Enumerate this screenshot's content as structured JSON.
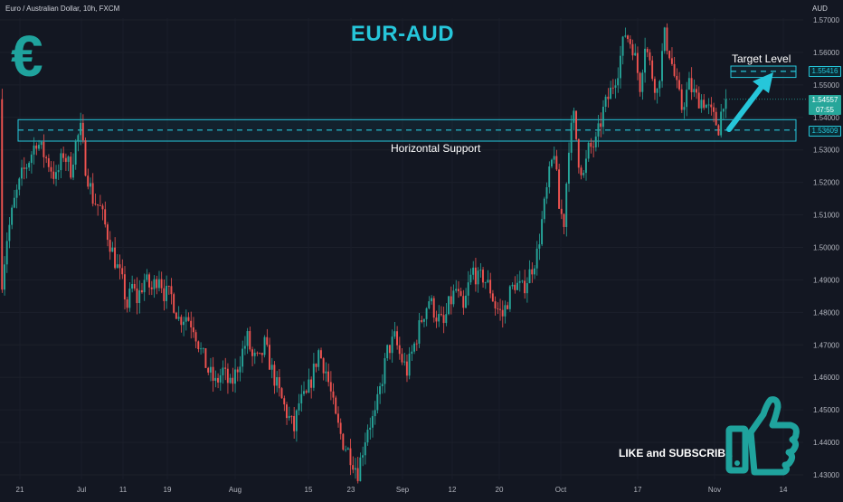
{
  "header": {
    "symbol_title": "Euro / Australian Dollar, 10h, FXCM",
    "headline": "EUR-AUD",
    "axis_unit": "AUD"
  },
  "annotations": {
    "support_label": "Horizontal Support",
    "target_label": "Target Level",
    "cta_label": "LIKE and SUBSCRIBE",
    "logo_glyph": "€"
  },
  "price_tags": {
    "target": "1.55416",
    "last_price": "1.54557",
    "countdown": "07:55",
    "support": "1.53609"
  },
  "colors": {
    "background": "#131722",
    "bull": "#26a69a",
    "bear": "#ef5350",
    "accent": "#26c6da",
    "logo": "#1fa39d"
  },
  "icons": [
    "euro-logo-icon",
    "thumbs-up-icon",
    "target-arrow-icon"
  ],
  "chart_data": {
    "type": "candlestick",
    "title": "EUR-AUD",
    "ylabel": "AUD",
    "ylim": [
      1.428,
      1.572
    ],
    "y_ticks": [
      "1.57000",
      "1.56000",
      "1.55000",
      "1.54000",
      "1.53000",
      "1.52000",
      "1.51000",
      "1.50000",
      "1.49000",
      "1.48000",
      "1.47000",
      "1.46000",
      "1.45000",
      "1.44000",
      "1.43000"
    ],
    "x_ticks": [
      "21",
      "Jul",
      "11",
      "19",
      "Aug",
      "15",
      "23",
      "Sep",
      "12",
      "20",
      "Oct",
      "17",
      "Nov",
      "14"
    ],
    "support_zone": {
      "level": 1.53609,
      "high": 1.5393,
      "low": 1.5327
    },
    "target_zone": {
      "level": 1.55416,
      "high": 1.5558,
      "low": 1.5523
    },
    "last_price": 1.54557,
    "path": [
      [
        1,
        1.49
      ],
      [
        3,
        1.503
      ],
      [
        6,
        1.514
      ],
      [
        9,
        1.522
      ],
      [
        12,
        1.527
      ],
      [
        15,
        1.533
      ],
      [
        17,
        1.53
      ],
      [
        20,
        1.526
      ],
      [
        23,
        1.521
      ],
      [
        26,
        1.529
      ],
      [
        29,
        1.524
      ],
      [
        31,
        1.532
      ],
      [
        33,
        1.536
      ],
      [
        35,
        1.525
      ],
      [
        38,
        1.515
      ],
      [
        41,
        1.512
      ],
      [
        44,
        1.504
      ],
      [
        47,
        1.496
      ],
      [
        50,
        1.489
      ],
      [
        52,
        1.482
      ],
      [
        54,
        1.488
      ],
      [
        56,
        1.484
      ],
      [
        59,
        1.49
      ],
      [
        62,
        1.487
      ],
      [
        65,
        1.492
      ],
      [
        67,
        1.486
      ],
      [
        70,
        1.485
      ],
      [
        73,
        1.478
      ],
      [
        76,
        1.479
      ],
      [
        79,
        1.476
      ],
      [
        82,
        1.468
      ],
      [
        85,
        1.462
      ],
      [
        88,
        1.458
      ],
      [
        91,
        1.462
      ],
      [
        94,
        1.457
      ],
      [
        96,
        1.461
      ],
      [
        99,
        1.468
      ],
      [
        101,
        1.472
      ],
      [
        103,
        1.466
      ],
      [
        106,
        1.465
      ],
      [
        108,
        1.47
      ],
      [
        111,
        1.462
      ],
      [
        114,
        1.455
      ],
      [
        117,
        1.449
      ],
      [
        120,
        1.444
      ],
      [
        122,
        1.452
      ],
      [
        125,
        1.454
      ],
      [
        128,
        1.462
      ],
      [
        130,
        1.468
      ],
      [
        133,
        1.462
      ],
      [
        135,
        1.455
      ],
      [
        137,
        1.447
      ],
      [
        140,
        1.44
      ],
      [
        143,
        1.436
      ],
      [
        146,
        1.431
      ],
      [
        148,
        1.438
      ],
      [
        150,
        1.445
      ],
      [
        153,
        1.448
      ],
      [
        156,
        1.46
      ],
      [
        158,
        1.468
      ],
      [
        161,
        1.472
      ],
      [
        163,
        1.467
      ],
      [
        166,
        1.462
      ],
      [
        169,
        1.47
      ],
      [
        172,
        1.478
      ],
      [
        175,
        1.484
      ],
      [
        178,
        1.479
      ],
      [
        181,
        1.476
      ],
      [
        183,
        1.482
      ],
      [
        186,
        1.487
      ],
      [
        189,
        1.48
      ],
      [
        191,
        1.488
      ],
      [
        193,
        1.493
      ],
      [
        195,
        1.49
      ],
      [
        197,
        1.491
      ],
      [
        200,
        1.487
      ],
      [
        202,
        1.482
      ],
      [
        205,
        1.479
      ],
      [
        208,
        1.486
      ],
      [
        210,
        1.489
      ],
      [
        213,
        1.487
      ],
      [
        216,
        1.492
      ],
      [
        219,
        1.498
      ],
      [
        221,
        1.508
      ],
      [
        224,
        1.522
      ],
      [
        226,
        1.53
      ],
      [
        228,
        1.512
      ],
      [
        230,
        1.508
      ],
      [
        232,
        1.532
      ],
      [
        234,
        1.54
      ],
      [
        236,
        1.527
      ],
      [
        238,
        1.522
      ],
      [
        240,
        1.53
      ],
      [
        243,
        1.532
      ],
      [
        246,
        1.542
      ],
      [
        249,
        1.548
      ],
      [
        252,
        1.555
      ],
      [
        255,
        1.566
      ],
      [
        258,
        1.562
      ],
      [
        261,
        1.55
      ],
      [
        263,
        1.563
      ],
      [
        266,
        1.553
      ],
      [
        268,
        1.548
      ],
      [
        271,
        1.565
      ],
      [
        273,
        1.56
      ],
      [
        276,
        1.549
      ],
      [
        278,
        1.543
      ],
      [
        281,
        1.55
      ],
      [
        284,
        1.546
      ],
      [
        287,
        1.545
      ],
      [
        290,
        1.541
      ],
      [
        293,
        1.537
      ],
      [
        295,
        1.5456
      ]
    ]
  }
}
